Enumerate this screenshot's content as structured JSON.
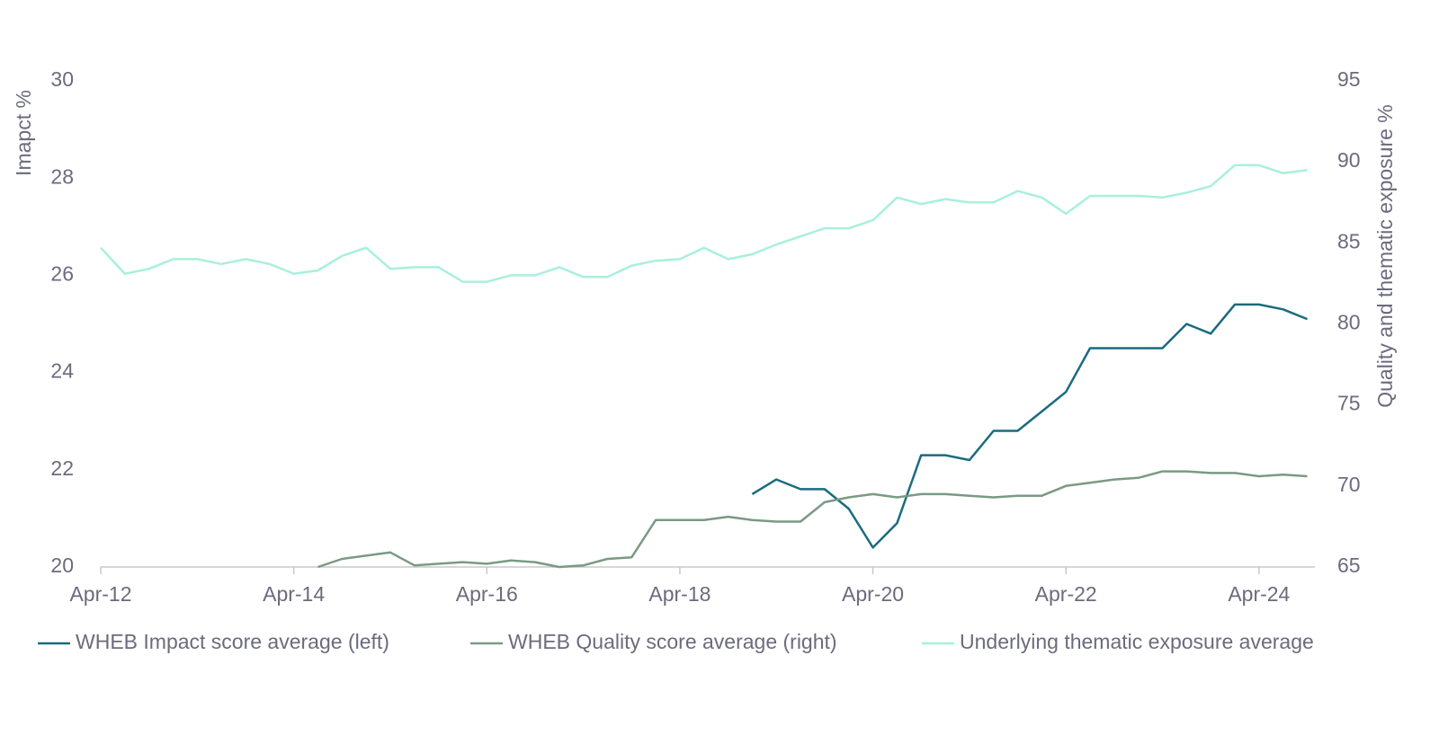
{
  "chart_data": {
    "type": "line",
    "categories": [
      "Apr-12",
      null,
      null,
      null,
      null,
      null,
      null,
      null,
      "Apr-14",
      null,
      null,
      null,
      null,
      null,
      null,
      null,
      "Apr-16",
      null,
      null,
      null,
      null,
      null,
      null,
      null,
      "Apr-18",
      null,
      null,
      null,
      null,
      null,
      null,
      null,
      "Apr-20",
      null,
      null,
      null,
      null,
      null,
      null,
      null,
      "Apr-22",
      null,
      null,
      null,
      null,
      null,
      null,
      null,
      "Apr-24",
      null,
      null
    ],
    "ylabel": "Imapct %",
    "y2label": "Quality and thematic exposure %",
    "ylim": [
      20,
      30
    ],
    "yticks": [
      20,
      22,
      24,
      26,
      28,
      30
    ],
    "y2lim": [
      65,
      95
    ],
    "y2ticks": [
      65,
      70,
      75,
      80,
      85,
      90,
      95
    ],
    "legend": "bottom",
    "series": [
      {
        "name": "WHEB Impact score average (left)",
        "color": "#1a6b80",
        "values": [
          null,
          null,
          null,
          null,
          null,
          null,
          null,
          null,
          null,
          null,
          null,
          null,
          null,
          null,
          null,
          null,
          null,
          null,
          null,
          null,
          null,
          null,
          null,
          null,
          null,
          null,
          null,
          21.5,
          21.8,
          21.6,
          21.6,
          21.2,
          20.4,
          20.9,
          22.3,
          22.3,
          22.2,
          22.8,
          22.8,
          23.2,
          23.6,
          24.5,
          24.5,
          24.5,
          24.5,
          25.0,
          24.8,
          25.4,
          25.4,
          25.3,
          25.1
        ]
      },
      {
        "name": "WHEB Quality score average (right)",
        "color": "#7a9a83",
        "axis": "y2",
        "values": [
          null,
          null,
          null,
          null,
          null,
          null,
          null,
          null,
          null,
          65.0,
          65.5,
          65.7,
          65.9,
          65.1,
          65.2,
          65.3,
          65.2,
          65.4,
          65.3,
          65.0,
          65.1,
          65.5,
          65.6,
          67.9,
          67.9,
          67.9,
          68.1,
          67.9,
          67.8,
          67.8,
          69.0,
          69.3,
          69.5,
          69.3,
          69.5,
          69.5,
          69.4,
          69.3,
          69.4,
          69.4,
          70.0,
          70.2,
          70.4,
          70.5,
          70.9,
          70.9,
          70.8,
          70.8,
          70.6,
          70.7,
          70.6
        ]
      },
      {
        "name": "Underlying thematic exposure average",
        "color": "#a8f0dc",
        "axis": "y2",
        "values": [
          84.7,
          83.1,
          83.4,
          84.0,
          84.0,
          83.7,
          84.0,
          83.7,
          83.1,
          83.3,
          84.2,
          84.7,
          83.4,
          83.5,
          83.5,
          82.6,
          82.6,
          83.0,
          83.0,
          83.5,
          82.9,
          82.9,
          83.6,
          83.9,
          84.0,
          84.7,
          84.0,
          84.3,
          84.9,
          85.4,
          85.9,
          85.9,
          86.4,
          87.8,
          87.4,
          87.7,
          87.5,
          87.5,
          88.2,
          87.8,
          86.8,
          87.9,
          87.9,
          87.9,
          87.8,
          88.1,
          88.5,
          89.8,
          89.8,
          89.3,
          89.5
        ]
      }
    ]
  }
}
